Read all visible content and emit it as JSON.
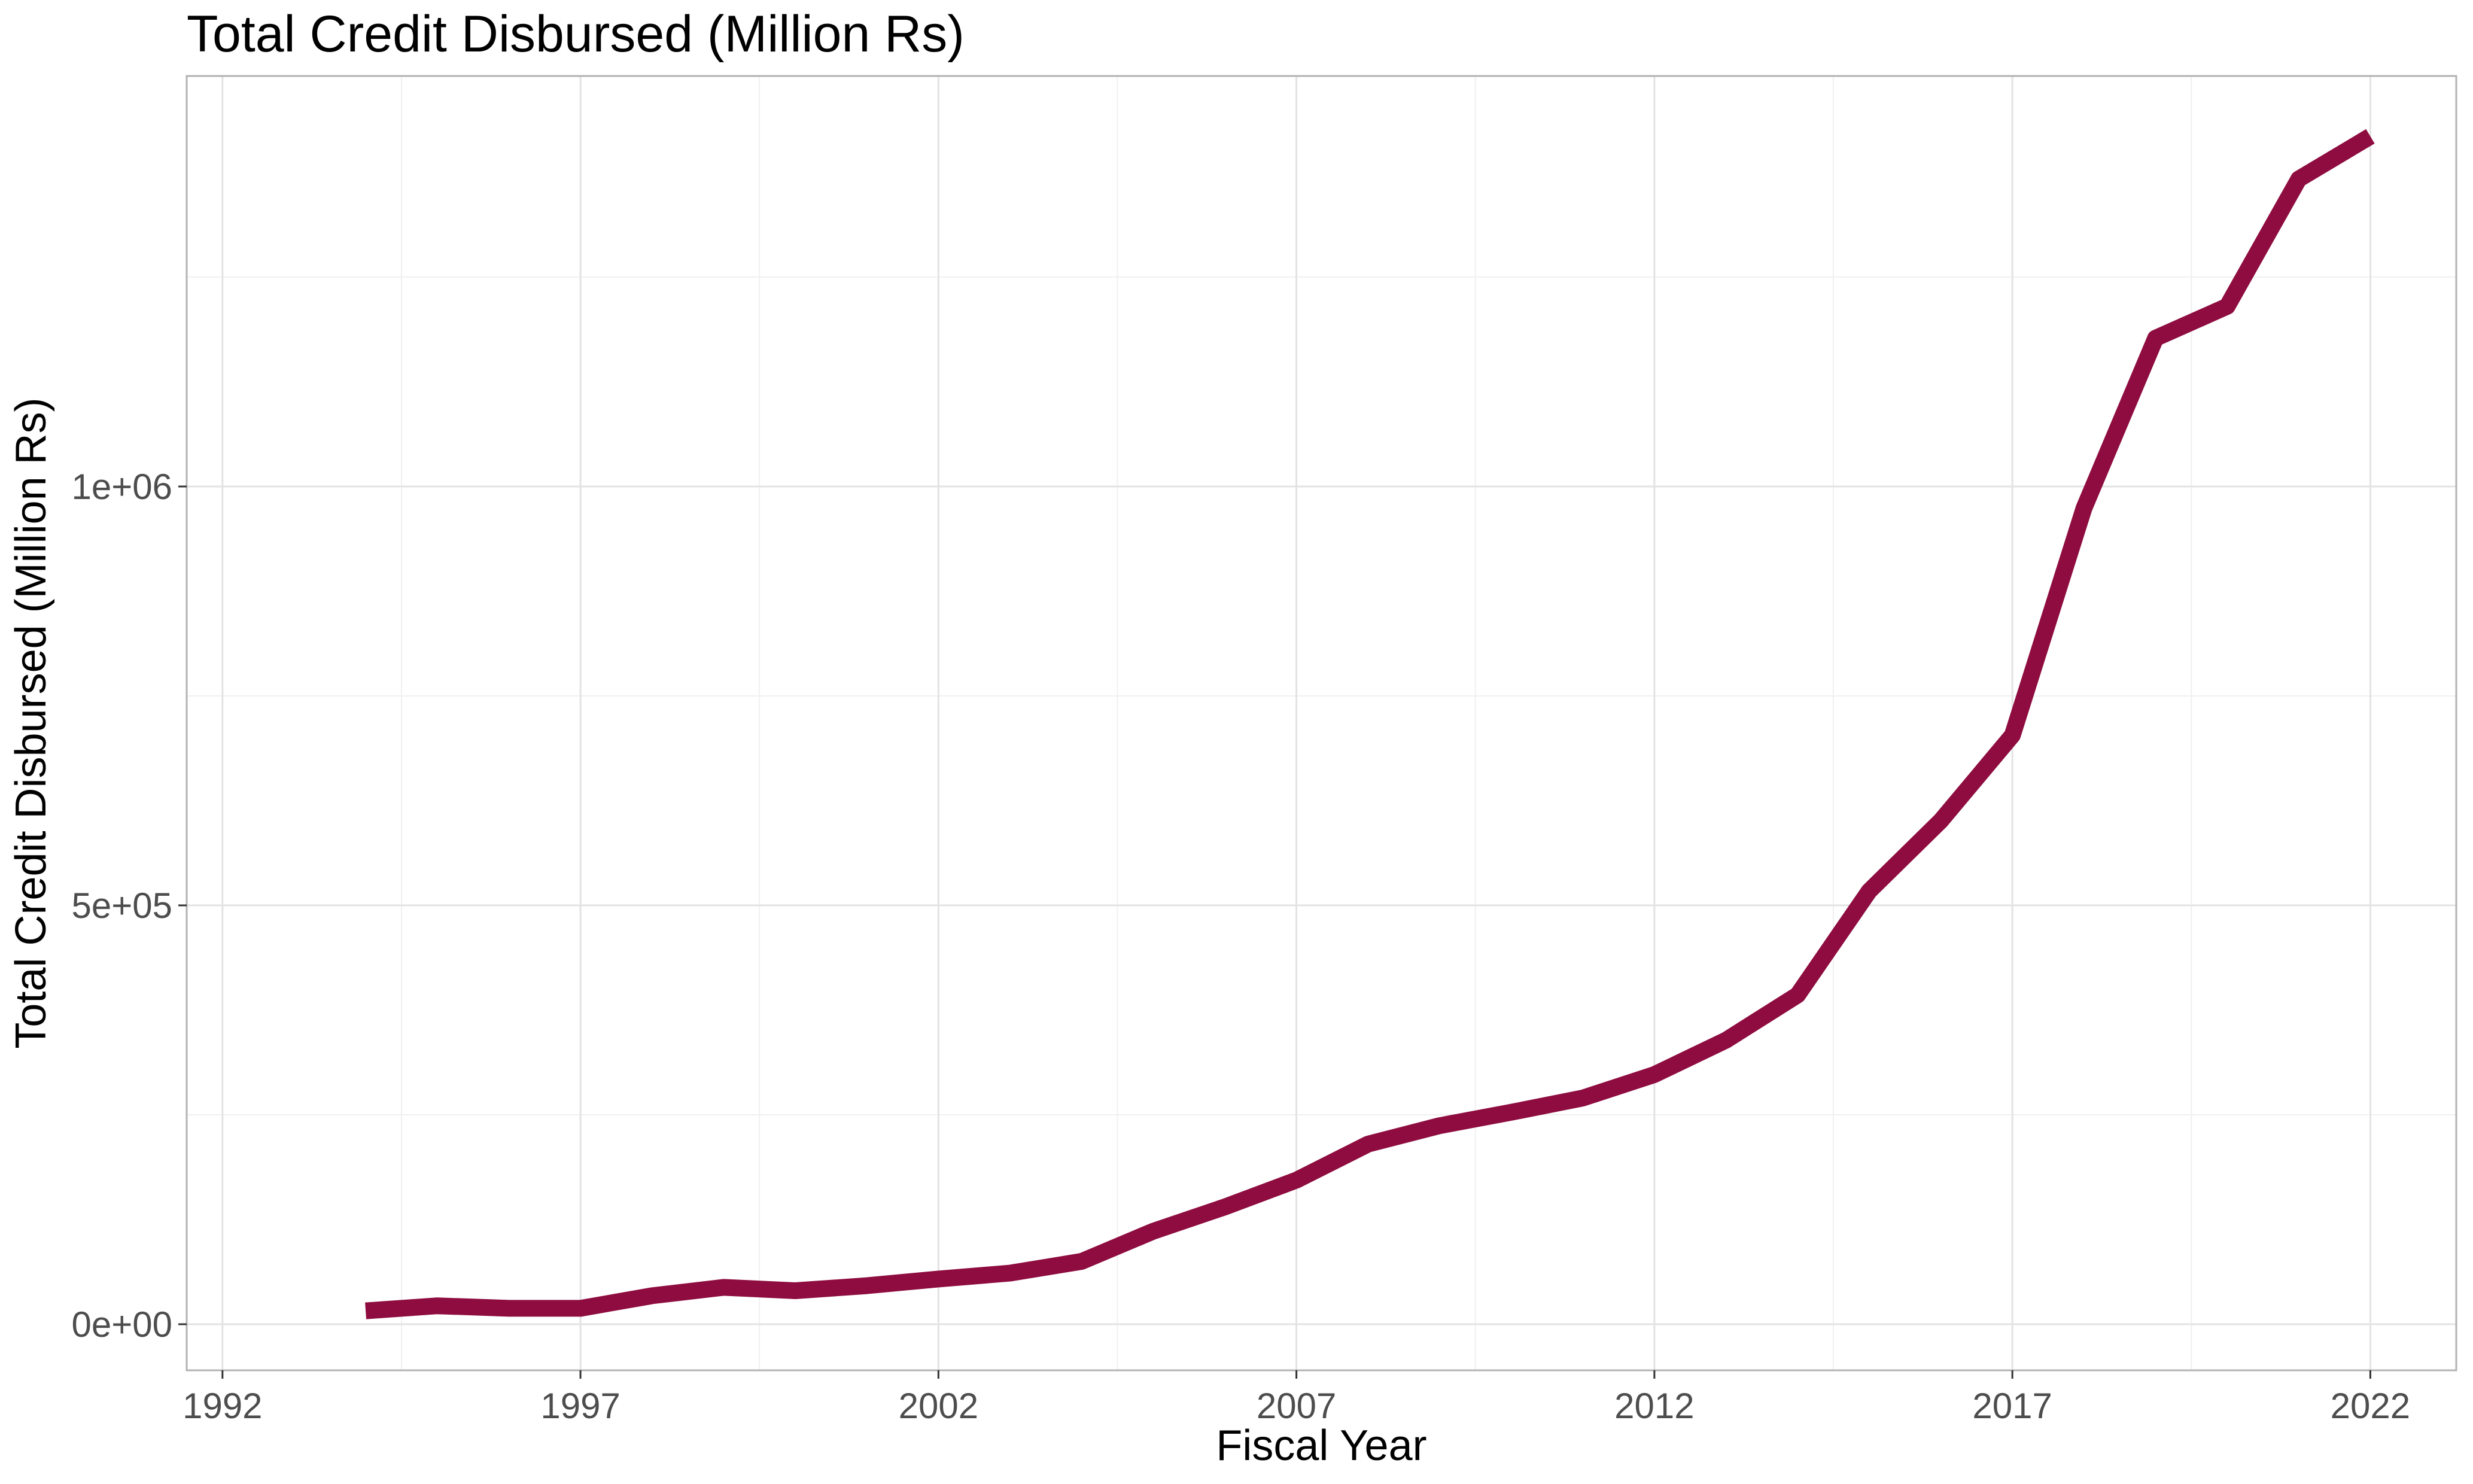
{
  "chart_data": {
    "type": "line",
    "title": "Total Credit Disbursed (Million Rs)",
    "xlabel": "Fiscal Year",
    "ylabel": "Total Credit Disbursed (Million Rs)",
    "xlim": [
      1991.5,
      2023.2
    ],
    "ylim": [
      -55000,
      1490000
    ],
    "x_ticks": [
      1992,
      1997,
      2002,
      2007,
      2012,
      2017,
      2022
    ],
    "x_tick_labels": [
      "1992",
      "1997",
      "2002",
      "2007",
      "2012",
      "2017",
      "2022"
    ],
    "x_minor_ticks": [
      1994.5,
      1999.5,
      2004.5,
      2009.5,
      2014.5,
      2019.5
    ],
    "y_ticks": [
      0,
      500000,
      1000000
    ],
    "y_tick_labels": [
      "0e+00",
      "5e+05",
      "1e+06"
    ],
    "y_minor_ticks": [
      250000,
      750000,
      1250000
    ],
    "grid": true,
    "line_color": "#8e0c3f",
    "series": [
      {
        "x": [
          1994,
          1995,
          1996,
          1997,
          1998,
          1999,
          2000,
          2001,
          2002,
          2003,
          2004,
          2005,
          2006,
          2007,
          2008,
          2009,
          2010,
          2011,
          2012,
          2013,
          2014,
          2015,
          2016,
          2017,
          2018,
          2019,
          2020,
          2021,
          2022
        ],
        "values": [
          16000,
          22000,
          19000,
          19000,
          34000,
          44000,
          40000,
          46000,
          54000,
          61000,
          75000,
          111000,
          140000,
          172000,
          215000,
          237000,
          253000,
          270000,
          298000,
          339000,
          393000,
          517000,
          601000,
          703000,
          974000,
          1177000,
          1215000,
          1367000,
          1418000
        ]
      }
    ]
  }
}
